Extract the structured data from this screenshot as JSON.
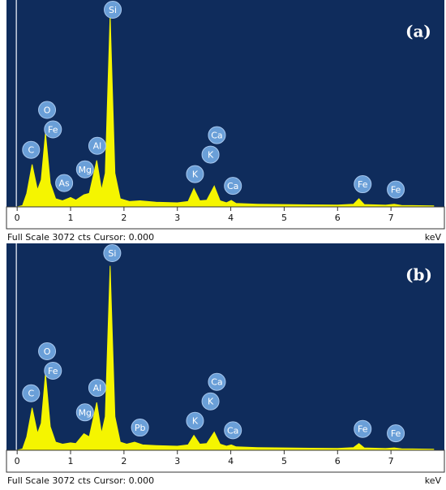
{
  "chart_data": [
    {
      "type": "area",
      "panel_label": "(a)",
      "status": "Full Scale 3072 cts Cursor: 0.000",
      "x_unit": "keV",
      "color": "#f5f500",
      "background": "#0f2c5c",
      "xlim": [
        -0.2,
        8.0
      ],
      "ylim": [
        0,
        3072
      ],
      "xticks": [
        0,
        1,
        2,
        3,
        4,
        5,
        6,
        7
      ],
      "x": [
        0.0,
        0.1,
        0.18,
        0.28,
        0.38,
        0.45,
        0.53,
        0.62,
        0.72,
        0.85,
        1.0,
        1.1,
        1.25,
        1.35,
        1.49,
        1.58,
        1.65,
        1.74,
        1.83,
        1.93,
        2.1,
        2.3,
        2.6,
        3.0,
        3.2,
        3.31,
        3.42,
        3.55,
        3.69,
        3.8,
        3.92,
        4.01,
        4.1,
        4.5,
        5.0,
        5.5,
        6.0,
        6.3,
        6.4,
        6.5,
        6.9,
        7.06,
        7.2,
        7.8
      ],
      "values": [
        0,
        20,
        200,
        630,
        250,
        400,
        1100,
        350,
        120,
        90,
        140,
        100,
        180,
        200,
        690,
        250,
        500,
        2850,
        500,
        120,
        80,
        90,
        70,
        60,
        80,
        270,
        90,
        100,
        310,
        90,
        60,
        95,
        50,
        40,
        35,
        30,
        28,
        40,
        120,
        35,
        25,
        40,
        22,
        15
      ],
      "peak_labels": [
        {
          "text": "Si",
          "x": 1.79
        },
        {
          "text": "Fe",
          "x": 0.67
        },
        {
          "text": "O",
          "x": 0.56
        },
        {
          "text": "C",
          "x": 0.26
        },
        {
          "text": "Al",
          "x": 1.5
        },
        {
          "text": "As",
          "x": 0.88
        },
        {
          "text": "Mg",
          "x": 1.27
        },
        {
          "text": "K",
          "x": 3.33
        },
        {
          "text": "K",
          "x": 3.62
        },
        {
          "text": "Ca",
          "x": 3.74
        },
        {
          "text": "Ca",
          "x": 4.04
        },
        {
          "text": "Fe",
          "x": 6.47
        },
        {
          "text": "Fe",
          "x": 7.09
        }
      ]
    },
    {
      "type": "area",
      "panel_label": "(b)",
      "status": "Full Scale 3072 cts Cursor: 0.000",
      "x_unit": "keV",
      "color": "#f5f500",
      "background": "#0f2c5c",
      "xlim": [
        -0.2,
        8.0
      ],
      "ylim": [
        0,
        3072
      ],
      "xticks": [
        0,
        1,
        2,
        3,
        4,
        5,
        6,
        7
      ],
      "x": [
        0.0,
        0.1,
        0.18,
        0.28,
        0.38,
        0.45,
        0.53,
        0.62,
        0.72,
        0.85,
        1.0,
        1.1,
        1.25,
        1.35,
        1.49,
        1.58,
        1.65,
        1.74,
        1.83,
        1.93,
        2.05,
        2.2,
        2.35,
        2.6,
        3.0,
        3.2,
        3.31,
        3.42,
        3.55,
        3.69,
        3.8,
        3.92,
        4.01,
        4.1,
        4.5,
        5.0,
        5.5,
        6.0,
        6.3,
        6.4,
        6.5,
        6.9,
        7.06,
        7.2,
        7.8
      ],
      "values": [
        0,
        20,
        200,
        630,
        250,
        400,
        1140,
        350,
        120,
        90,
        110,
        100,
        245,
        200,
        710,
        250,
        500,
        2740,
        500,
        120,
        90,
        120,
        80,
        70,
        60,
        80,
        220,
        90,
        100,
        270,
        90,
        60,
        80,
        50,
        40,
        35,
        30,
        28,
        40,
        100,
        35,
        25,
        35,
        22,
        15
      ],
      "peak_labels": [
        {
          "text": "Si",
          "x": 1.78
        },
        {
          "text": "Fe",
          "x": 0.67
        },
        {
          "text": "O",
          "x": 0.56
        },
        {
          "text": "C",
          "x": 0.26
        },
        {
          "text": "Al",
          "x": 1.5
        },
        {
          "text": "Mg",
          "x": 1.27
        },
        {
          "text": "Pb",
          "x": 2.3
        },
        {
          "text": "K",
          "x": 3.33
        },
        {
          "text": "K",
          "x": 3.62
        },
        {
          "text": "Ca",
          "x": 3.74
        },
        {
          "text": "Ca",
          "x": 4.04
        },
        {
          "text": "Fe",
          "x": 6.47
        },
        {
          "text": "Fe",
          "x": 7.09
        }
      ]
    }
  ]
}
